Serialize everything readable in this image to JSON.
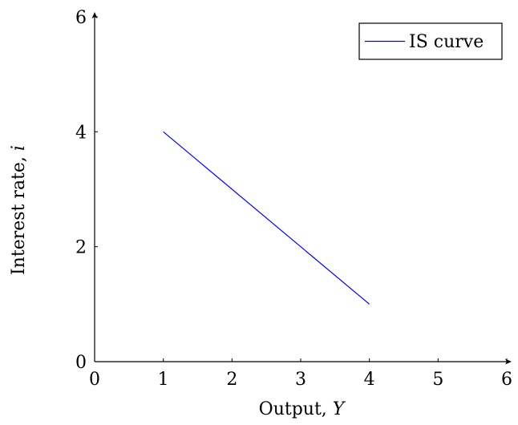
{
  "chart_data": {
    "type": "line",
    "xlabel": "Output, ",
    "xlabel_var": "Y",
    "ylabel": "Interest rate, ",
    "ylabel_var": "i",
    "xlim": [
      0,
      6
    ],
    "ylim": [
      0,
      6
    ],
    "xticks": [
      0,
      1,
      2,
      3,
      4,
      5,
      6
    ],
    "yticks": [
      0,
      2,
      4,
      6
    ],
    "grid": false,
    "legend_position": "top-right",
    "series": [
      {
        "name": "IS curve",
        "color": "#0000ff",
        "x": [
          1,
          4
        ],
        "y": [
          4,
          1
        ]
      }
    ]
  }
}
